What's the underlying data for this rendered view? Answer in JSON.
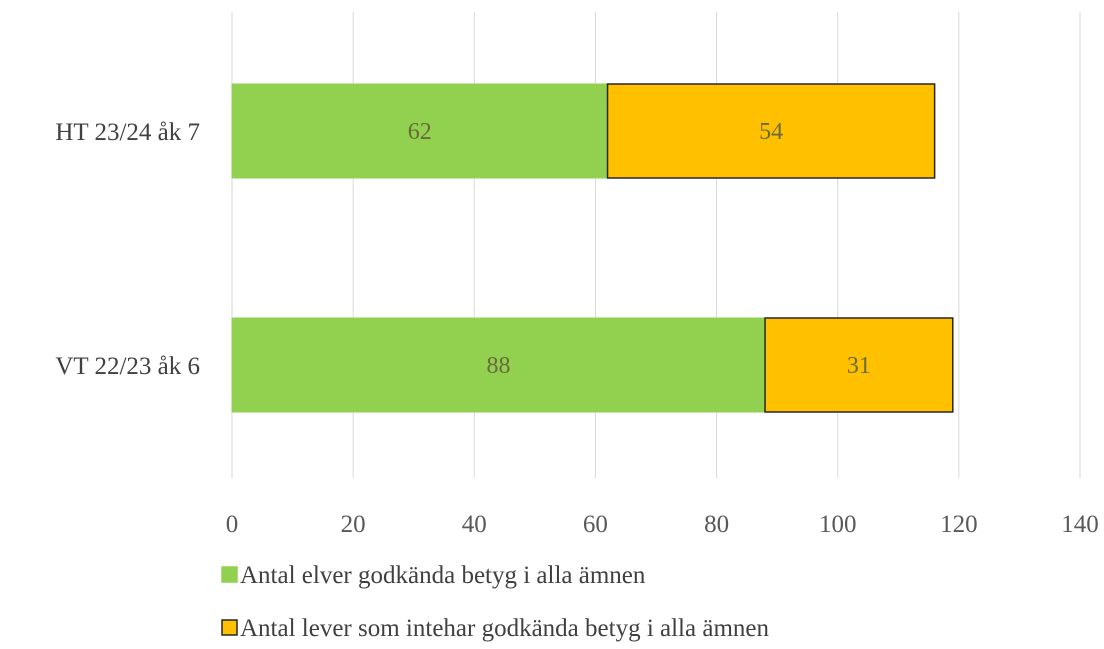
{
  "chart_data": {
    "type": "bar",
    "orientation": "horizontal",
    "stacked": true,
    "categories": [
      "HT 23/24 åk 7",
      "VT 22/23 åk 6"
    ],
    "series": [
      {
        "name": "Antal elver godkända betyg i alla ämnen",
        "values": [
          62,
          88
        ],
        "color": "#92d050"
      },
      {
        "name": "Antal lever som intehar godkända betyg i alla ämnen",
        "values": [
          54,
          31
        ],
        "color": "#ffc000"
      }
    ],
    "xlim": [
      0,
      140
    ],
    "xticks": [
      0,
      20,
      40,
      60,
      80,
      100,
      120,
      140
    ],
    "grid": true,
    "legend_position": "bottom",
    "data_labels": true
  }
}
